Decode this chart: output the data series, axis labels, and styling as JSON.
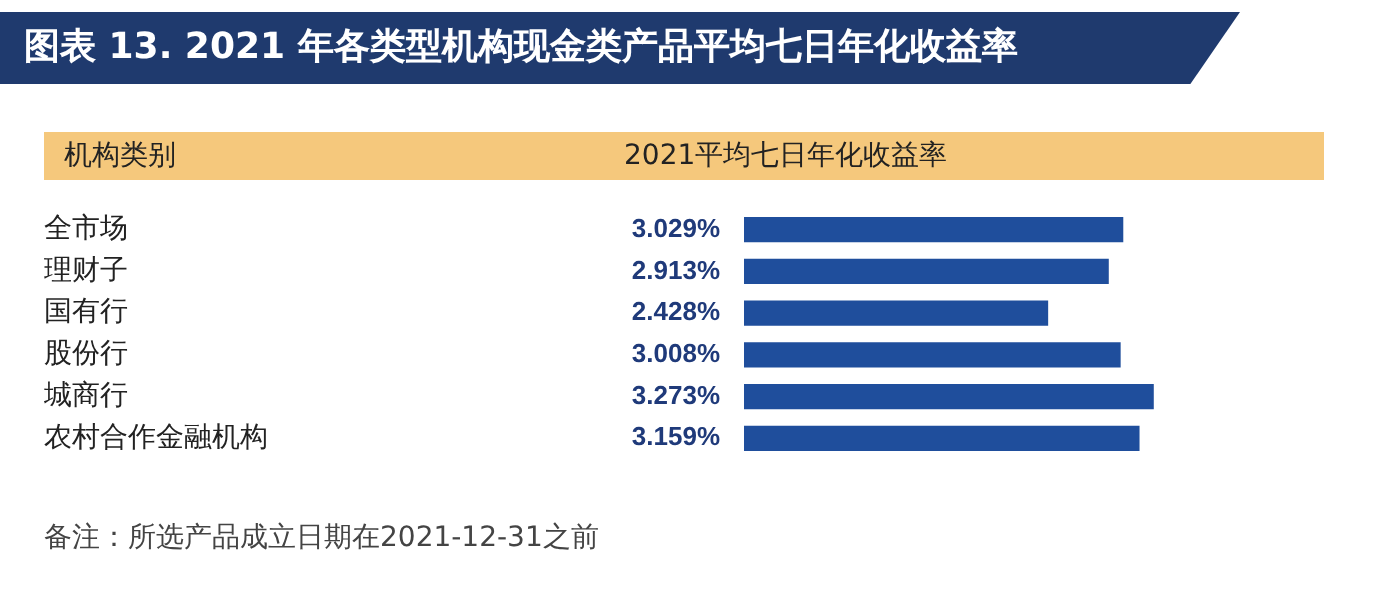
{
  "chart_data": {
    "type": "bar",
    "orientation": "horizontal",
    "title": "图表 13. 2021 年各类型机构现金类产品平均七日年化收益率",
    "ylabel": "机构类别",
    "xlabel": "2021平均七日年化收益率",
    "categories": [
      "全市场",
      "理财子",
      "国有行",
      "股份行",
      "城商行",
      "农村合作金融机构"
    ],
    "values": [
      3.029,
      2.913,
      2.428,
      3.008,
      3.273,
      3.159
    ],
    "value_labels": [
      "3.029%",
      "2.913%",
      "2.428%",
      "3.008%",
      "3.273%",
      "3.159%"
    ],
    "color": "#1f4e9c",
    "tick_labels": "y",
    "annotations": [
      "备注：所选产品成立日期在2021-12-31之前"
    ]
  }
}
